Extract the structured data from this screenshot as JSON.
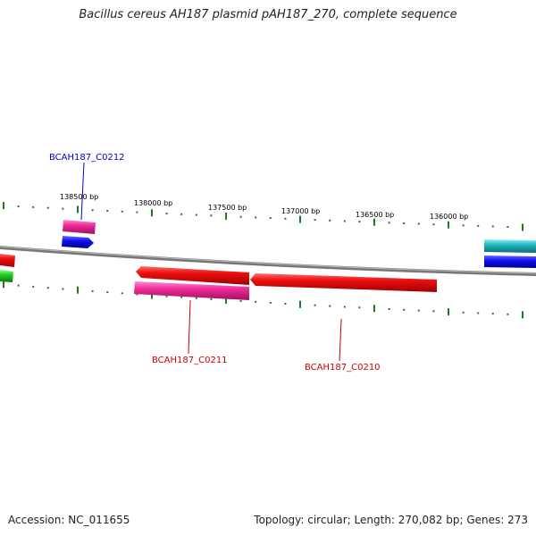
{
  "title": "Bacillus cereus AH187 plasmid pAH187_270, complete sequence",
  "footer": {
    "accession": "Accession: NC_011655",
    "summary": "Topology: circular; Length: 270,082 bp; Genes: 273"
  },
  "ticks": [
    "138500 bp",
    "138000 bp",
    "137500 bp",
    "137000 bp",
    "136500 bp",
    "136000 bp"
  ],
  "gene_labels": {
    "c0212": "BCAH187_C0212",
    "c0211": "BCAH187_C0211",
    "c0210": "BCAH187_C0210"
  },
  "colors": {
    "backbone": "#888888",
    "tick": "#1f7a1f",
    "label_blue": "#0000cc",
    "label_red": "#cc0000",
    "pink": "#ee2a9a",
    "red": "#ee1010",
    "blue": "#1010ee",
    "cyan": "#20b8c0",
    "green": "#22cc22"
  }
}
